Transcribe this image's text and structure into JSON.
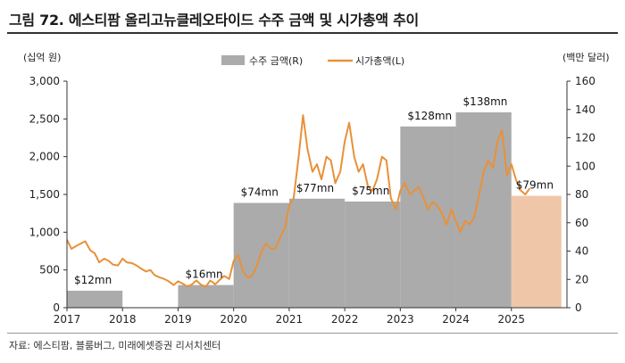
{
  "title": "그림 72. 에스티팜 올리고뉴클레오타이드 수주 금액 및 시가총액 추이",
  "source": "자료: 에스티팜, 블룸버그, 미래에셋증권 리서치센터",
  "chart_data": {
    "type": "bar",
    "title": "그림 72. 에스티팜 올리고뉴클레오타이드 수주 금액 및 시가총액 추이",
    "xlabel": "",
    "y_left_label": "(십억 원)",
    "y_right_label": "(백만 달러)",
    "y_left_lim": [
      0,
      3000
    ],
    "y_left_ticks": [
      "0",
      "500",
      "1,000",
      "1,500",
      "2,000",
      "2,500",
      "3,000"
    ],
    "y_right_lim": [
      0,
      160
    ],
    "y_right_ticks": [
      "0",
      "20",
      "40",
      "60",
      "80",
      "100",
      "120",
      "140",
      "160"
    ],
    "x_lim": [
      2017,
      2026
    ],
    "x_ticks": [
      "2017",
      "2018",
      "2019",
      "2020",
      "2021",
      "2022",
      "2023",
      "2024",
      "2025"
    ],
    "legend": {
      "position": "top",
      "items": [
        "수주 금액(R)",
        "시가총액(L)"
      ]
    },
    "colors": {
      "bar": "#ababab",
      "bar_estimate": "#efc7a8",
      "line": "#e8913a"
    },
    "series": [
      {
        "name": "수주 금액(R)",
        "axis": "right",
        "kind": "step-bar",
        "segments": [
          {
            "start": 2017.0,
            "end": 2018.0,
            "value": 12,
            "label": "$12mn",
            "estimate": false
          },
          {
            "start": 2018.0,
            "end": 2019.0,
            "value": 0,
            "label": "",
            "estimate": false
          },
          {
            "start": 2019.0,
            "end": 2020.0,
            "value": 16,
            "label": "$16mn",
            "estimate": false
          },
          {
            "start": 2020.0,
            "end": 2021.0,
            "value": 74,
            "label": "$74mn",
            "estimate": false
          },
          {
            "start": 2021.0,
            "end": 2022.0,
            "value": 77,
            "label": "$77mn",
            "estimate": false
          },
          {
            "start": 2022.0,
            "end": 2023.0,
            "value": 75,
            "label": "$75mn",
            "estimate": false
          },
          {
            "start": 2023.0,
            "end": 2024.0,
            "value": 128,
            "label": "$128mn",
            "estimate": false
          },
          {
            "start": 2024.0,
            "end": 2025.0,
            "value": 138,
            "label": "$138mn",
            "estimate": false
          },
          {
            "start": 2025.0,
            "end": 2025.9,
            "value": 79,
            "label": "$79mn",
            "estimate": true
          }
        ]
      },
      {
        "name": "시가총액(L)",
        "axis": "left",
        "kind": "line",
        "x": [
          2017.0,
          2017.08,
          2017.17,
          2017.25,
          2017.33,
          2017.42,
          2017.5,
          2017.58,
          2017.67,
          2017.75,
          2017.83,
          2017.92,
          2018.0,
          2018.08,
          2018.17,
          2018.25,
          2018.33,
          2018.42,
          2018.5,
          2018.58,
          2018.67,
          2018.75,
          2018.83,
          2018.92,
          2019.0,
          2019.08,
          2019.17,
          2019.25,
          2019.33,
          2019.42,
          2019.5,
          2019.58,
          2019.67,
          2019.75,
          2019.83,
          2019.92,
          2020.0,
          2020.08,
          2020.17,
          2020.25,
          2020.33,
          2020.42,
          2020.5,
          2020.58,
          2020.67,
          2020.75,
          2020.83,
          2020.92,
          2021.0,
          2021.08,
          2021.17,
          2021.25,
          2021.33,
          2021.42,
          2021.5,
          2021.58,
          2021.67,
          2021.75,
          2021.83,
          2021.92,
          2022.0,
          2022.08,
          2022.17,
          2022.25,
          2022.33,
          2022.42,
          2022.5,
          2022.58,
          2022.67,
          2022.75,
          2022.83,
          2022.92,
          2023.0,
          2023.08,
          2023.17,
          2023.25,
          2023.33,
          2023.42,
          2023.5,
          2023.58,
          2023.67,
          2023.75,
          2023.83,
          2023.92,
          2024.0,
          2024.08,
          2024.17,
          2024.25,
          2024.33,
          2024.42,
          2024.5,
          2024.58,
          2024.67,
          2024.75,
          2024.83,
          2024.92,
          2025.0,
          2025.08,
          2025.17,
          2025.25,
          2025.33
        ],
        "values": [
          900,
          780,
          820,
          850,
          880,
          760,
          720,
          600,
          650,
          620,
          570,
          560,
          650,
          600,
          590,
          560,
          520,
          480,
          500,
          430,
          400,
          380,
          350,
          300,
          350,
          320,
          280,
          310,
          360,
          300,
          280,
          360,
          310,
          370,
          420,
          380,
          620,
          700,
          480,
          400,
          420,
          560,
          740,
          850,
          780,
          780,
          920,
          1050,
          1350,
          1450,
          2000,
          2550,
          2100,
          1800,
          1900,
          1700,
          2000,
          1950,
          1650,
          1800,
          2200,
          2450,
          2000,
          1800,
          1900,
          1600,
          1550,
          1700,
          2000,
          1950,
          1450,
          1300,
          1550,
          1650,
          1500,
          1550,
          1600,
          1450,
          1300,
          1400,
          1350,
          1250,
          1100,
          1300,
          1150,
          1000,
          1150,
          1100,
          1200,
          1500,
          1800,
          1950,
          1850,
          2200,
          2350,
          1750,
          1900,
          1700,
          1550,
          1500,
          1580
        ]
      }
    ]
  }
}
